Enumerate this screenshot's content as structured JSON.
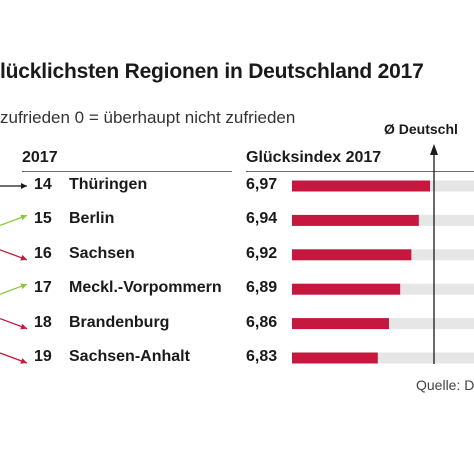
{
  "colors": {
    "bar": "#c6183f",
    "track": "#e6e6e6",
    "up_arrow": "#8cc63f",
    "down_arrow": "#c6183f",
    "same_arrow": "#1a1a1a"
  },
  "header": {
    "title": "lücklichsten Regionen in Deutschland 2017",
    "subtitle": "zufrieden 0 = überhaupt nicht zufrieden",
    "reference_label": "Ø Deutschl",
    "rank_column": "2017",
    "index_column": "Glücksindex 2017"
  },
  "source": "Quelle: D",
  "chart_data": {
    "type": "bar",
    "orientation": "horizontal",
    "categories": [
      "Thüringen",
      "Berlin",
      "Sachsen",
      "Meckl.-Vorpommern",
      "Brandenburg",
      "Sachsen-Anhalt"
    ],
    "ranks": [
      "14",
      "15",
      "16",
      "17",
      "18",
      "19"
    ],
    "labels": [
      "6,97",
      "6,94",
      "6,92",
      "6,89",
      "6,86",
      "6,83"
    ],
    "values": [
      6.97,
      6.94,
      6.92,
      6.89,
      6.86,
      6.83
    ],
    "trend": [
      "same",
      "up",
      "down",
      "up",
      "down",
      "down"
    ],
    "reference_line": true
  }
}
